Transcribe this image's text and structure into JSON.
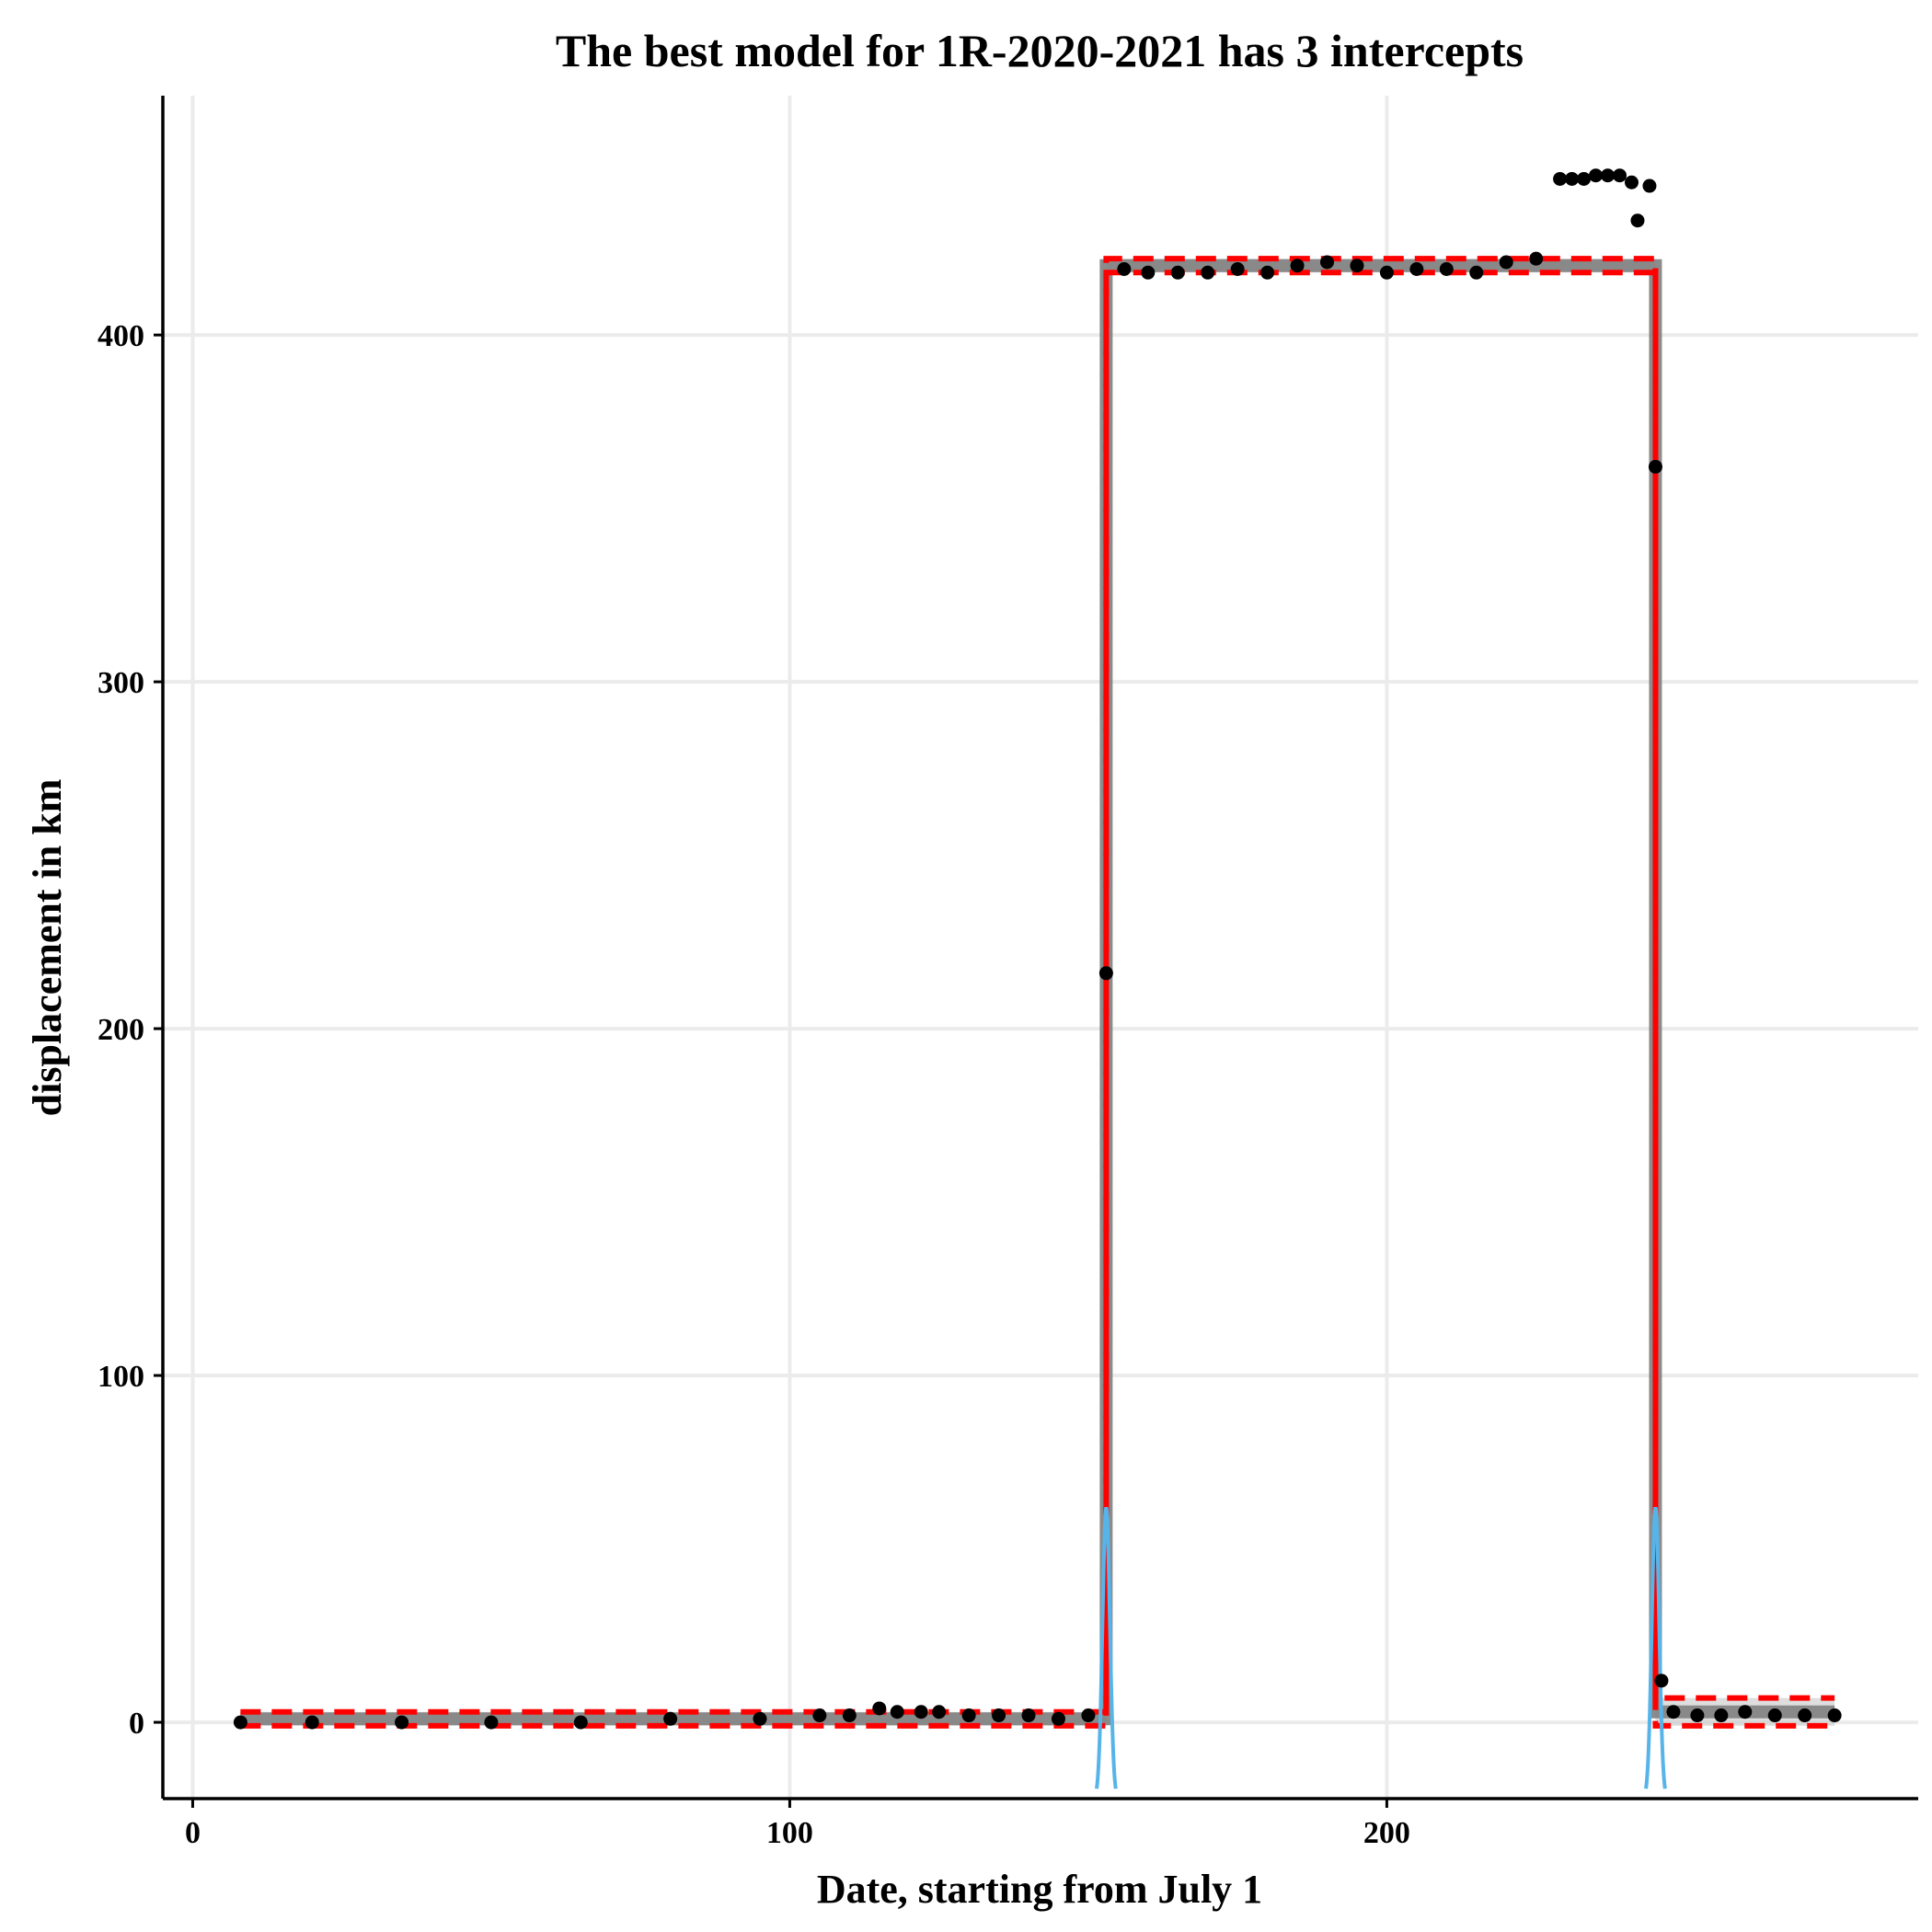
{
  "chart_data": {
    "type": "scatter",
    "title": "The best model for 1R-2020-2021 has 3 intercepts",
    "xlabel": "Date, starting from July 1",
    "ylabel": "displacement in km",
    "xlim": [
      -5,
      289
    ],
    "ylim": [
      -22,
      469
    ],
    "xticks": [
      0,
      100,
      200
    ],
    "yticks": [
      0,
      100,
      200,
      300,
      400
    ],
    "grid": true,
    "legend": "none",
    "colors": {
      "points": "#000000",
      "fit": "#808080",
      "fit_band": "#c8c8c8",
      "interval": "#ff0000",
      "density": "#56b4e9",
      "grid": "#ebebeb"
    },
    "points": [
      {
        "x": 8,
        "y": 0
      },
      {
        "x": 20,
        "y": 0
      },
      {
        "x": 35,
        "y": 0
      },
      {
        "x": 50,
        "y": 0
      },
      {
        "x": 65,
        "y": 0
      },
      {
        "x": 80,
        "y": 1
      },
      {
        "x": 95,
        "y": 1
      },
      {
        "x": 105,
        "y": 2
      },
      {
        "x": 110,
        "y": 2
      },
      {
        "x": 115,
        "y": 4
      },
      {
        "x": 118,
        "y": 3
      },
      {
        "x": 122,
        "y": 3
      },
      {
        "x": 125,
        "y": 3
      },
      {
        "x": 130,
        "y": 2
      },
      {
        "x": 135,
        "y": 2
      },
      {
        "x": 140,
        "y": 2
      },
      {
        "x": 145,
        "y": 1
      },
      {
        "x": 150,
        "y": 2
      },
      {
        "x": 153,
        "y": 216
      },
      {
        "x": 156,
        "y": 419
      },
      {
        "x": 160,
        "y": 418
      },
      {
        "x": 165,
        "y": 418
      },
      {
        "x": 170,
        "y": 418
      },
      {
        "x": 175,
        "y": 419
      },
      {
        "x": 180,
        "y": 418
      },
      {
        "x": 185,
        "y": 420
      },
      {
        "x": 190,
        "y": 421
      },
      {
        "x": 195,
        "y": 420
      },
      {
        "x": 200,
        "y": 418
      },
      {
        "x": 205,
        "y": 419
      },
      {
        "x": 210,
        "y": 419
      },
      {
        "x": 215,
        "y": 418
      },
      {
        "x": 220,
        "y": 421
      },
      {
        "x": 225,
        "y": 422
      },
      {
        "x": 229,
        "y": 445
      },
      {
        "x": 231,
        "y": 445
      },
      {
        "x": 233,
        "y": 445
      },
      {
        "x": 235,
        "y": 446
      },
      {
        "x": 237,
        "y": 446
      },
      {
        "x": 239,
        "y": 446
      },
      {
        "x": 241,
        "y": 444
      },
      {
        "x": 242,
        "y": 433
      },
      {
        "x": 244,
        "y": 443
      },
      {
        "x": 245,
        "y": 362
      },
      {
        "x": 246,
        "y": 12
      },
      {
        "x": 248,
        "y": 3
      },
      {
        "x": 252,
        "y": 2
      },
      {
        "x": 256,
        "y": 2
      },
      {
        "x": 260,
        "y": 3
      },
      {
        "x": 265,
        "y": 2
      },
      {
        "x": 270,
        "y": 2
      },
      {
        "x": 275,
        "y": 2
      }
    ],
    "segments": [
      {
        "x_start": 8,
        "x_end": 153,
        "mean": 1,
        "lower": -1,
        "upper": 3
      },
      {
        "x_start": 153,
        "x_end": 245,
        "mean": 420,
        "lower": 418,
        "upper": 422
      },
      {
        "x_start": 245,
        "x_end": 275,
        "mean": 3,
        "lower": -1,
        "upper": 7
      }
    ],
    "changepoint_density": [
      {
        "x": 153,
        "peak": 62
      },
      {
        "x": 245,
        "peak": 62
      }
    ]
  }
}
